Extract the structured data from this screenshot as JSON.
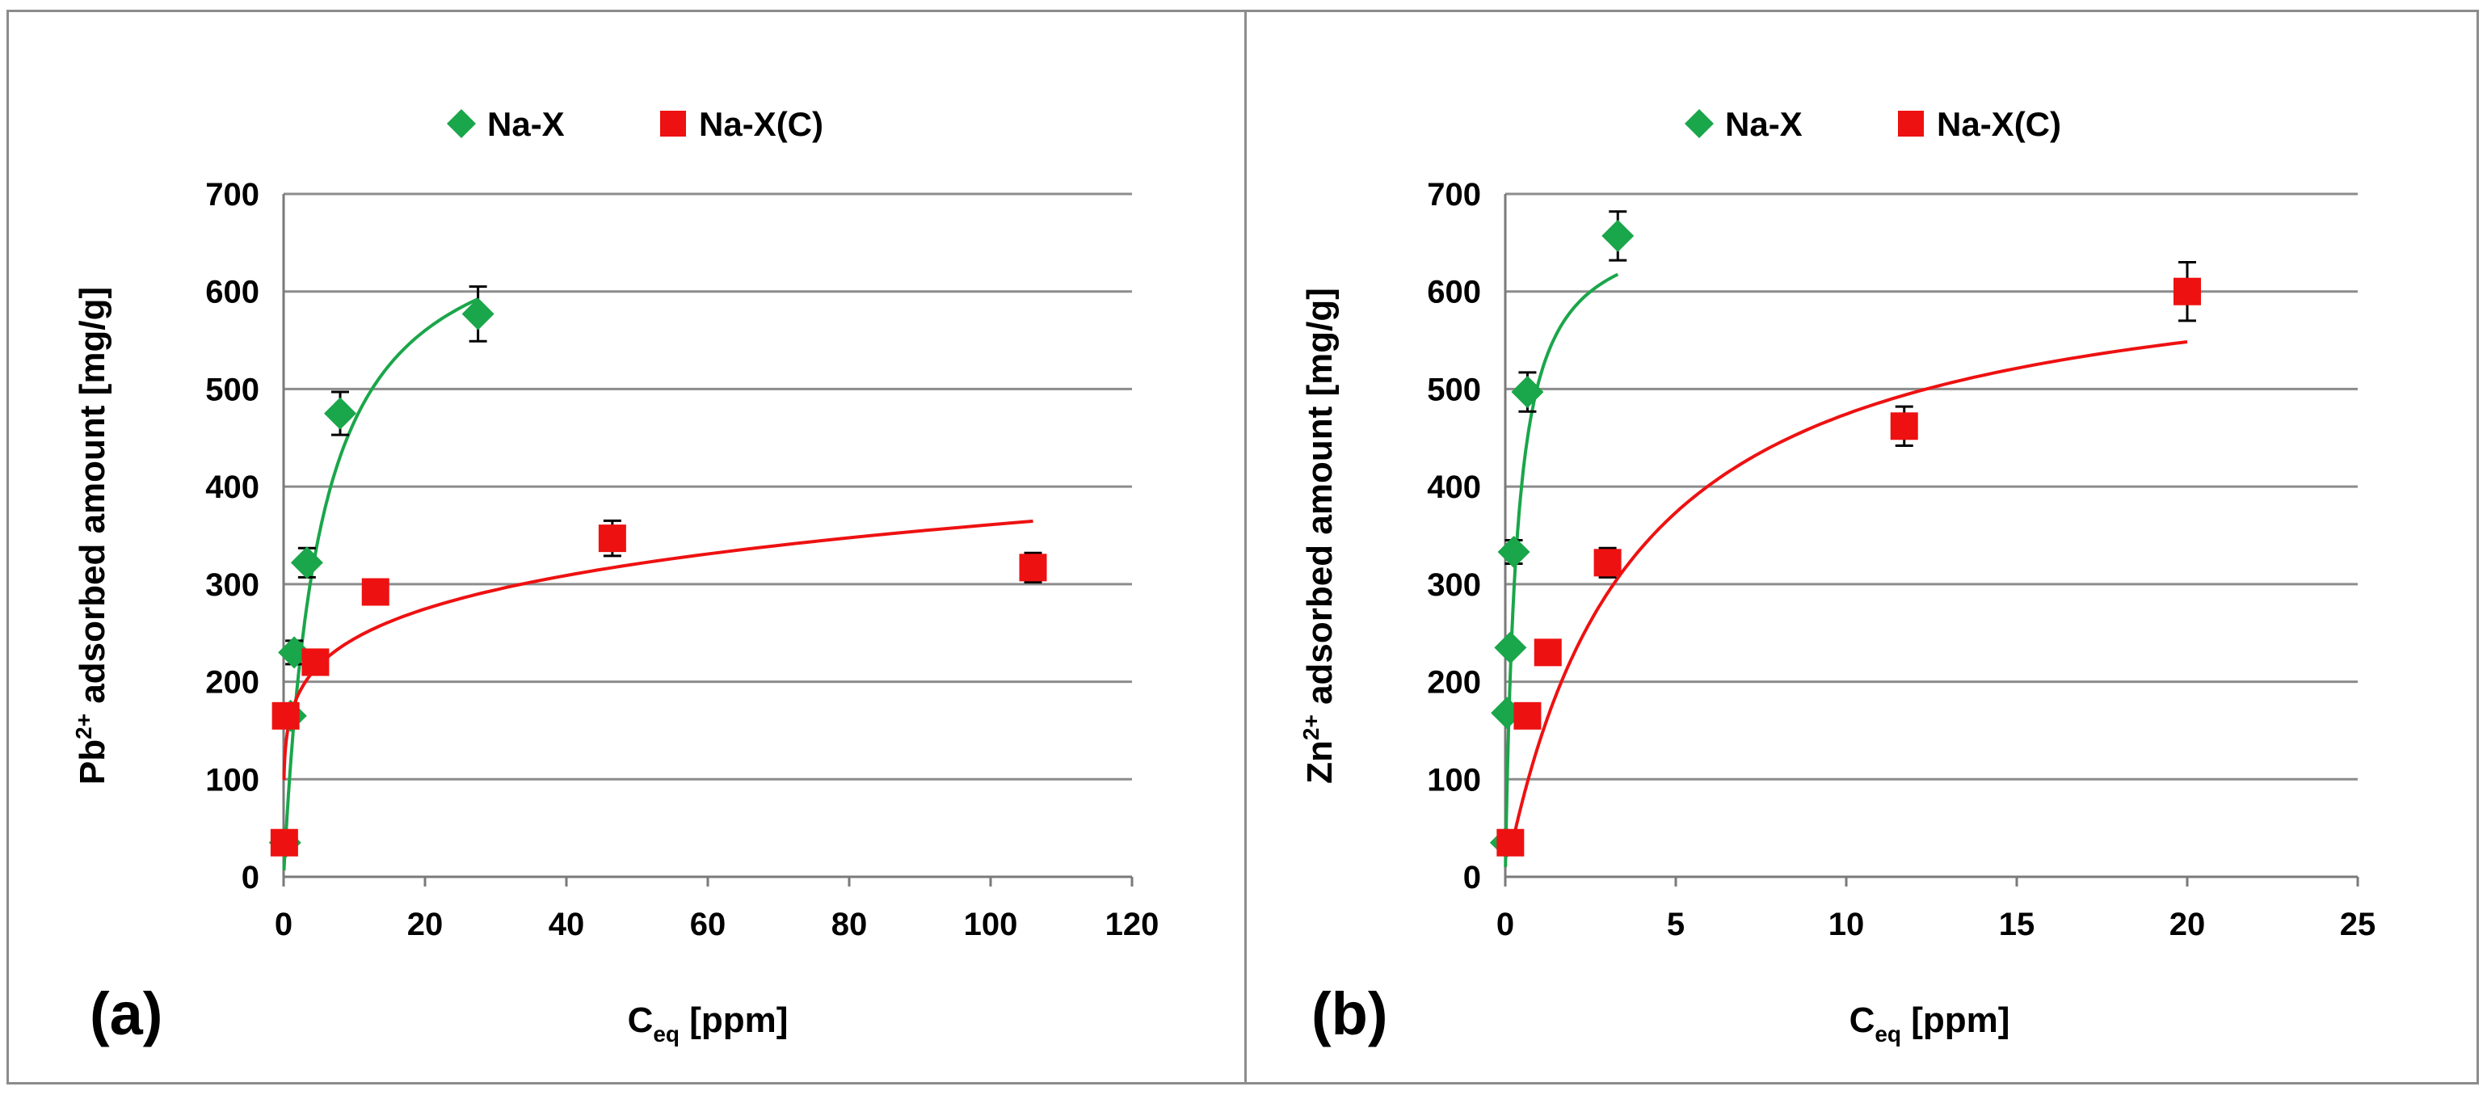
{
  "colors": {
    "na_x": "#1aa64a",
    "na_xc": "#ee1111",
    "grid": "#8c8c8c",
    "axis": "#7a7a7a"
  },
  "chart_data": [
    {
      "type": "scatter",
      "panel_label": "(a)",
      "title": "",
      "xlabel_main": "C",
      "xlabel_sub": "eq",
      "xlabel_rest": " [ppm]",
      "ylabel_pre": "Pb",
      "ylabel_sup": "2+",
      "ylabel_rest": " adsorbed amount  [mg/g]",
      "xlim": [
        0,
        120
      ],
      "ylim": [
        0,
        700
      ],
      "xticks": [
        0,
        20,
        40,
        60,
        80,
        100,
        120
      ],
      "yticks": [
        0,
        100,
        200,
        300,
        400,
        500,
        600,
        700
      ],
      "grid": true,
      "legend_position": "top-center",
      "series": [
        {
          "name": "Na-X",
          "marker": "diamond",
          "color": "#1aa64a",
          "x": [
            0.2,
            1.0,
            1.5,
            3.3,
            8.0,
            27.5
          ],
          "y": [
            35,
            165,
            230,
            322,
            475,
            577
          ],
          "error": [
            0,
            0,
            12,
            15,
            22,
            28
          ],
          "fit": {
            "model": "langmuir",
            "qmax": 700,
            "K": 0.2,
            "xrange": [
              0.05,
              27.5
            ]
          }
        },
        {
          "name": "Na-X(C)",
          "marker": "square",
          "color": "#ee1111",
          "x": [
            0.1,
            0.3,
            4.5,
            13.0,
            46.5,
            106.0
          ],
          "y": [
            35,
            165,
            220,
            292,
            347,
            317
          ],
          "error": [
            0,
            0,
            0,
            12,
            18,
            15
          ],
          "fit": {
            "model": "freundlich",
            "Kf": 165,
            "n": 0.17,
            "xrange": [
              0.05,
              106
            ]
          }
        }
      ]
    },
    {
      "type": "scatter",
      "panel_label": "(b)",
      "title": "",
      "xlabel_main": "C",
      "xlabel_sub": "eq",
      "xlabel_rest": " [ppm]",
      "ylabel_pre": "Zn",
      "ylabel_sup": "2+",
      "ylabel_rest": " adsorbed amount  [mg/g]",
      "xlim": [
        0,
        25
      ],
      "ylim": [
        0,
        700
      ],
      "xticks": [
        0,
        5,
        10,
        15,
        20,
        25
      ],
      "yticks": [
        0,
        100,
        200,
        300,
        400,
        500,
        600,
        700
      ],
      "grid": true,
      "legend_position": "top-center",
      "series": [
        {
          "name": "Na-X",
          "marker": "diamond",
          "color": "#1aa64a",
          "x": [
            0.02,
            0.05,
            0.15,
            0.25,
            0.65,
            3.3
          ],
          "y": [
            35,
            168,
            235,
            333,
            497,
            657
          ],
          "error": [
            0,
            0,
            0,
            12,
            20,
            25
          ],
          "fit": {
            "model": "langmuir",
            "qmax": 680,
            "K": 3.0,
            "xrange": [
              0.005,
              3.3
            ]
          }
        },
        {
          "name": "Na-X(C)",
          "marker": "square",
          "color": "#ee1111",
          "x": [
            0.15,
            0.65,
            1.25,
            3.0,
            11.7,
            20.0
          ],
          "y": [
            35,
            165,
            230,
            322,
            462,
            600
          ],
          "error": [
            0,
            0,
            0,
            15,
            20,
            30
          ],
          "fit": {
            "model": "langmuir",
            "qmax": 650,
            "K": 0.27,
            "xrange": [
              0.2,
              20
            ]
          }
        }
      ]
    }
  ]
}
